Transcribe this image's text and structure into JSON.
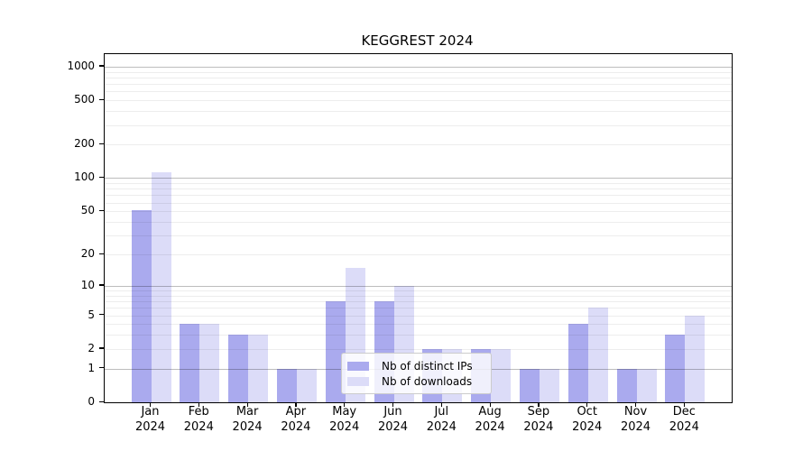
{
  "chart_data": {
    "type": "bar",
    "title": "KEGGREST 2024",
    "categories": [
      "Jan",
      "Feb",
      "Mar",
      "Apr",
      "May",
      "Jun",
      "Jul",
      "Aug",
      "Sep",
      "Oct",
      "Nov",
      "Dec"
    ],
    "x_tick_year": "2024",
    "series": [
      {
        "name": "Nb of distinct IPs",
        "color": "#aaaaee",
        "values": [
          51,
          4,
          3,
          1,
          7,
          7,
          2,
          2,
          1,
          4,
          1,
          3
        ]
      },
      {
        "name": "Nb of downloads",
        "color": "#dcdcf8",
        "values": [
          112,
          4,
          3,
          1,
          15,
          10,
          2,
          2,
          1,
          6,
          1,
          5
        ]
      }
    ],
    "y_axis": {
      "scale": "log10(1+y)",
      "tick_labels": [
        0,
        1,
        2,
        5,
        10,
        20,
        50,
        100,
        200,
        500,
        1000
      ],
      "major_gridlines": [
        1,
        10,
        100,
        1000
      ],
      "minor_gridlines": [
        2,
        3,
        4,
        5,
        6,
        7,
        8,
        9,
        20,
        30,
        40,
        50,
        60,
        70,
        80,
        90,
        200,
        300,
        400,
        500,
        600,
        700,
        800,
        900
      ],
      "top_value": 1300,
      "baseline": 0
    },
    "legend": {
      "location": "lower center",
      "entries": [
        "Nb of distinct IPs",
        "Nb of downloads"
      ]
    }
  }
}
